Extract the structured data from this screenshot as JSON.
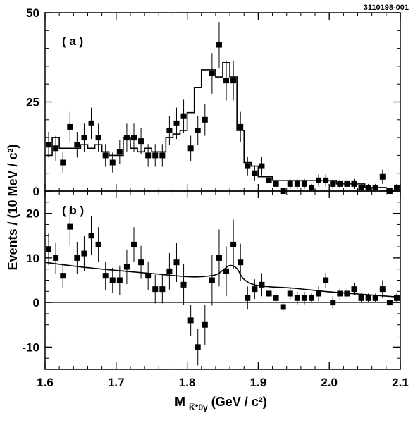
{
  "figure_id": "3110198-001",
  "ylabel": "Events / (10 MeV / c²)",
  "xlabel": {
    "main": "M",
    "sub": "K̅*0γ",
    "units": " (GeV / c²)"
  },
  "chart_data": [
    {
      "type": "scatter",
      "panel_label": "( a )",
      "xlim": [
        1.6,
        2.1
      ],
      "ylim": [
        0,
        50
      ],
      "x_ticks": [
        1.6,
        1.7,
        1.8,
        1.9,
        2.0,
        2.1
      ],
      "y_ticks": [
        0,
        25,
        50
      ],
      "series": [
        {
          "kind": "points_with_errors",
          "x": [
            1.605,
            1.615,
            1.625,
            1.635,
            1.645,
            1.655,
            1.665,
            1.675,
            1.685,
            1.695,
            1.705,
            1.715,
            1.725,
            1.735,
            1.745,
            1.755,
            1.765,
            1.775,
            1.785,
            1.795,
            1.805,
            1.815,
            1.825,
            1.835,
            1.845,
            1.855,
            1.865,
            1.875,
            1.885,
            1.895,
            1.905,
            1.915,
            1.925,
            1.935,
            1.945,
            1.955,
            1.965,
            1.975,
            1.985,
            1.995,
            2.005,
            2.015,
            2.025,
            2.035,
            2.045,
            2.055,
            2.065,
            2.075,
            2.085,
            2.095
          ],
          "y": [
            13,
            12,
            8,
            18,
            13,
            15,
            19,
            15,
            10,
            8,
            11,
            15,
            15,
            14,
            10,
            10,
            10,
            17,
            19,
            21,
            12,
            17,
            20,
            33,
            41,
            31,
            31,
            18,
            7,
            5,
            7,
            3,
            2,
            0,
            2,
            2,
            2,
            1,
            3,
            3,
            2,
            2,
            2,
            2,
            1,
            1,
            1,
            4,
            0,
            1
          ],
          "err": [
            3.6,
            3.5,
            2.8,
            4.2,
            3.6,
            3.9,
            4.4,
            3.9,
            3.2,
            2.8,
            3.3,
            3.9,
            3.9,
            3.7,
            3.2,
            3.2,
            3.2,
            4.1,
            4.4,
            4.6,
            3.5,
            4.1,
            4.5,
            5.7,
            6.4,
            5.6,
            5.6,
            4.2,
            2.6,
            2.2,
            2.6,
            1.7,
            1.4,
            1.0,
            1.4,
            1.4,
            1.4,
            1.0,
            1.7,
            1.7,
            1.4,
            1.4,
            1.4,
            1.4,
            1.0,
            1.0,
            1.0,
            2.0,
            0.6,
            1.0
          ]
        },
        {
          "kind": "histogram",
          "x": [
            1.605,
            1.615,
            1.625,
            1.635,
            1.645,
            1.655,
            1.665,
            1.675,
            1.685,
            1.695,
            1.705,
            1.715,
            1.725,
            1.735,
            1.745,
            1.755,
            1.765,
            1.775,
            1.785,
            1.795,
            1.805,
            1.815,
            1.825,
            1.835,
            1.845,
            1.855,
            1.865,
            1.875,
            1.885,
            1.895,
            1.905,
            1.915,
            1.925,
            1.935,
            1.945,
            1.955,
            1.965,
            1.975,
            1.985,
            1.995,
            2.005,
            2.015,
            2.025,
            2.035,
            2.045,
            2.055,
            2.065,
            2.075,
            2.085,
            2.095
          ],
          "y": [
            10,
            15,
            12,
            12,
            12,
            13,
            12,
            13,
            11,
            10,
            10,
            15,
            12,
            11,
            12,
            11,
            11,
            15,
            16,
            17,
            22,
            29,
            34,
            34,
            32,
            36,
            32,
            17,
            8,
            7,
            4,
            4,
            3,
            3,
            3,
            3,
            3,
            3,
            3,
            3,
            3,
            2,
            2,
            2,
            2,
            1,
            1,
            1,
            0,
            0
          ]
        }
      ]
    },
    {
      "type": "scatter",
      "panel_label": "( b )",
      "xlim": [
        1.6,
        2.1
      ],
      "ylim": [
        -15,
        25
      ],
      "x_ticks": [
        1.6,
        1.7,
        1.8,
        1.9,
        2.0,
        2.1
      ],
      "y_ticks": [
        -10,
        0,
        10,
        20
      ],
      "series": [
        {
          "kind": "points_with_errors",
          "x": [
            1.605,
            1.615,
            1.625,
            1.635,
            1.645,
            1.655,
            1.665,
            1.675,
            1.685,
            1.695,
            1.705,
            1.715,
            1.725,
            1.735,
            1.745,
            1.755,
            1.765,
            1.775,
            1.785,
            1.795,
            1.805,
            1.815,
            1.825,
            1.835,
            1.845,
            1.855,
            1.865,
            1.875,
            1.885,
            1.895,
            1.905,
            1.915,
            1.925,
            1.935,
            1.945,
            1.955,
            1.965,
            1.975,
            1.985,
            1.995,
            2.005,
            2.015,
            2.025,
            2.035,
            2.045,
            2.055,
            2.065,
            2.075,
            2.085,
            2.095
          ],
          "y": [
            12,
            10,
            6,
            17,
            10,
            11,
            15,
            13,
            6,
            5,
            5,
            8,
            13,
            9,
            6,
            3,
            3,
            7,
            9,
            4,
            -4,
            -10,
            -5,
            5,
            10,
            7,
            13,
            9,
            1,
            3,
            4,
            2,
            1,
            -1,
            2,
            1,
            1,
            1,
            2,
            5,
            0,
            2,
            2,
            3,
            1,
            1,
            1,
            3,
            0,
            1
          ],
          "err": [
            3.6,
            3.5,
            2.8,
            4.2,
            3.6,
            3.9,
            4.4,
            3.9,
            3.2,
            2.8,
            3.3,
            3.9,
            3.9,
            3.7,
            3.2,
            3.2,
            3.2,
            4.1,
            4.4,
            4.6,
            3.5,
            4.1,
            4.5,
            5.7,
            6.4,
            5.6,
            5.6,
            4.2,
            2.6,
            2.2,
            2.6,
            1.7,
            1.4,
            1.0,
            1.4,
            1.4,
            1.4,
            1.0,
            1.7,
            1.7,
            1.4,
            1.4,
            1.4,
            1.4,
            1.0,
            1.0,
            1.0,
            2.0,
            0.6,
            1.0
          ]
        },
        {
          "kind": "curve",
          "x": [
            1.6,
            1.65,
            1.7,
            1.75,
            1.8,
            1.82,
            1.84,
            1.85,
            1.86,
            1.87,
            1.88,
            1.9,
            1.95,
            2.0,
            2.05,
            2.1
          ],
          "y": [
            9,
            8,
            7.2,
            6.5,
            5.8,
            5.8,
            6.2,
            7.2,
            8.3,
            7.6,
            5.2,
            3.8,
            3.2,
            2.4,
            1.8,
            1.2
          ]
        },
        {
          "kind": "zero_line",
          "y": 0
        }
      ]
    }
  ]
}
